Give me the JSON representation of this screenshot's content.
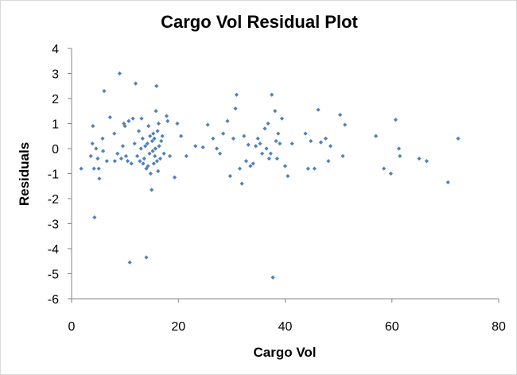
{
  "chart_data": {
    "type": "scatter",
    "title": "Cargo Vol  Residual Plot",
    "xlabel": "Cargo Vol",
    "ylabel": "Residuals",
    "xlim": [
      0,
      80
    ],
    "ylim": [
      -6,
      4
    ],
    "xticks": [
      0,
      20,
      40,
      60,
      80
    ],
    "yticks": [
      4,
      3,
      2,
      1,
      0,
      -1,
      -2,
      -3,
      -4,
      -5,
      -6
    ],
    "grid": false,
    "legend": "none",
    "marker_color": "#4F81BD",
    "series": [
      {
        "points": [
          [
            1.8,
            -0.8
          ],
          [
            3.6,
            -0.3
          ],
          [
            3.9,
            0.2
          ],
          [
            4.0,
            0.9
          ],
          [
            4.2,
            -0.8
          ],
          [
            4.3,
            -2.75
          ],
          [
            4.6,
            0.0
          ],
          [
            4.9,
            -0.4
          ],
          [
            5.1,
            -0.8
          ],
          [
            5.2,
            -1.2
          ],
          [
            5.8,
            0.4
          ],
          [
            5.9,
            -0.1
          ],
          [
            6.1,
            2.3
          ],
          [
            6.6,
            -0.5
          ],
          [
            7.2,
            1.25
          ],
          [
            8.0,
            0.6
          ],
          [
            8.1,
            -0.5
          ],
          [
            8.6,
            -0.2
          ],
          [
            9.0,
            3.0
          ],
          [
            9.3,
            -0.4
          ],
          [
            9.6,
            0.1
          ],
          [
            9.8,
            1.0
          ],
          [
            10.0,
            0.9
          ],
          [
            10.2,
            -0.3
          ],
          [
            10.5,
            -0.5
          ],
          [
            10.7,
            1.1
          ],
          [
            10.9,
            -4.55
          ],
          [
            11.2,
            -0.6
          ],
          [
            11.5,
            1.2
          ],
          [
            11.8,
            0.2
          ],
          [
            12.0,
            2.6
          ],
          [
            12.3,
            -0.3
          ],
          [
            12.6,
            0.7
          ],
          [
            12.8,
            -0.5
          ],
          [
            13.0,
            0.0
          ],
          [
            13.1,
            1.2
          ],
          [
            13.3,
            0.4
          ],
          [
            13.4,
            -0.6
          ],
          [
            13.6,
            -0.4
          ],
          [
            13.8,
            0.1
          ],
          [
            14.0,
            -0.8
          ],
          [
            14.0,
            -4.35
          ],
          [
            14.2,
            0.2
          ],
          [
            14.3,
            -0.7
          ],
          [
            14.4,
            0.9
          ],
          [
            14.6,
            -0.2
          ],
          [
            14.7,
            0.5
          ],
          [
            14.8,
            -1.0
          ],
          [
            15.0,
            -1.65
          ],
          [
            15.1,
            0.3
          ],
          [
            15.2,
            -0.1
          ],
          [
            15.3,
            0.6
          ],
          [
            15.4,
            -0.6
          ],
          [
            15.5,
            0.4
          ],
          [
            15.6,
            -0.3
          ],
          [
            15.7,
            0.0
          ],
          [
            15.8,
            1.5
          ],
          [
            15.9,
            2.5
          ],
          [
            16.0,
            -0.5
          ],
          [
            16.1,
            0.7
          ],
          [
            16.2,
            -0.9
          ],
          [
            16.3,
            1.0
          ],
          [
            16.4,
            0.1
          ],
          [
            16.6,
            -0.4
          ],
          [
            16.8,
            0.3
          ],
          [
            17.0,
            0.5
          ],
          [
            17.3,
            -0.2
          ],
          [
            17.8,
            1.3
          ],
          [
            18.0,
            1.1
          ],
          [
            18.4,
            -0.3
          ],
          [
            19.3,
            -1.15
          ],
          [
            19.8,
            1.0
          ],
          [
            20.5,
            0.5
          ],
          [
            21.5,
            -0.3
          ],
          [
            23.2,
            0.1
          ],
          [
            24.6,
            0.05
          ],
          [
            25.5,
            0.95
          ],
          [
            26.5,
            0.4
          ],
          [
            27.2,
            0.0
          ],
          [
            27.8,
            -0.2
          ],
          [
            28.4,
            0.6
          ],
          [
            29.2,
            1.1
          ],
          [
            29.7,
            -1.1
          ],
          [
            30.3,
            0.4
          ],
          [
            30.7,
            1.6
          ],
          [
            30.9,
            2.15
          ],
          [
            31.5,
            -0.8
          ],
          [
            31.9,
            -1.4
          ],
          [
            32.3,
            0.5
          ],
          [
            32.7,
            -0.5
          ],
          [
            33.1,
            0.15
          ],
          [
            33.5,
            -0.7
          ],
          [
            34.0,
            -0.6
          ],
          [
            34.5,
            0.1
          ],
          [
            34.9,
            0.4
          ],
          [
            35.3,
            0.2
          ],
          [
            35.7,
            -0.2
          ],
          [
            36.2,
            0.8
          ],
          [
            36.5,
            0.0
          ],
          [
            36.8,
            1.0
          ],
          [
            37.0,
            -0.4
          ],
          [
            37.3,
            -0.2
          ],
          [
            37.5,
            2.15
          ],
          [
            37.7,
            -5.15
          ],
          [
            38.1,
            1.5
          ],
          [
            38.3,
            0.3
          ],
          [
            38.5,
            -0.4
          ],
          [
            38.7,
            0.6
          ],
          [
            39.0,
            0.2
          ],
          [
            39.4,
            1.2
          ],
          [
            40.0,
            -0.7
          ],
          [
            40.5,
            -1.1
          ],
          [
            41.3,
            0.2
          ],
          [
            43.8,
            0.6
          ],
          [
            44.3,
            -0.8
          ],
          [
            44.8,
            0.3
          ],
          [
            45.5,
            -0.8
          ],
          [
            46.2,
            1.55
          ],
          [
            46.7,
            0.25
          ],
          [
            47.6,
            0.4
          ],
          [
            48.1,
            -0.5
          ],
          [
            48.5,
            0.1
          ],
          [
            50.3,
            1.35
          ],
          [
            50.8,
            -0.3
          ],
          [
            51.2,
            0.95
          ],
          [
            57.0,
            0.5
          ],
          [
            58.5,
            -0.8
          ],
          [
            59.8,
            -1.0
          ],
          [
            60.7,
            1.15
          ],
          [
            61.3,
            0.0
          ],
          [
            61.5,
            -0.3
          ],
          [
            65.1,
            -0.4
          ],
          [
            66.5,
            -0.5
          ],
          [
            70.5,
            -1.35
          ],
          [
            72.4,
            0.4
          ]
        ]
      }
    ]
  }
}
